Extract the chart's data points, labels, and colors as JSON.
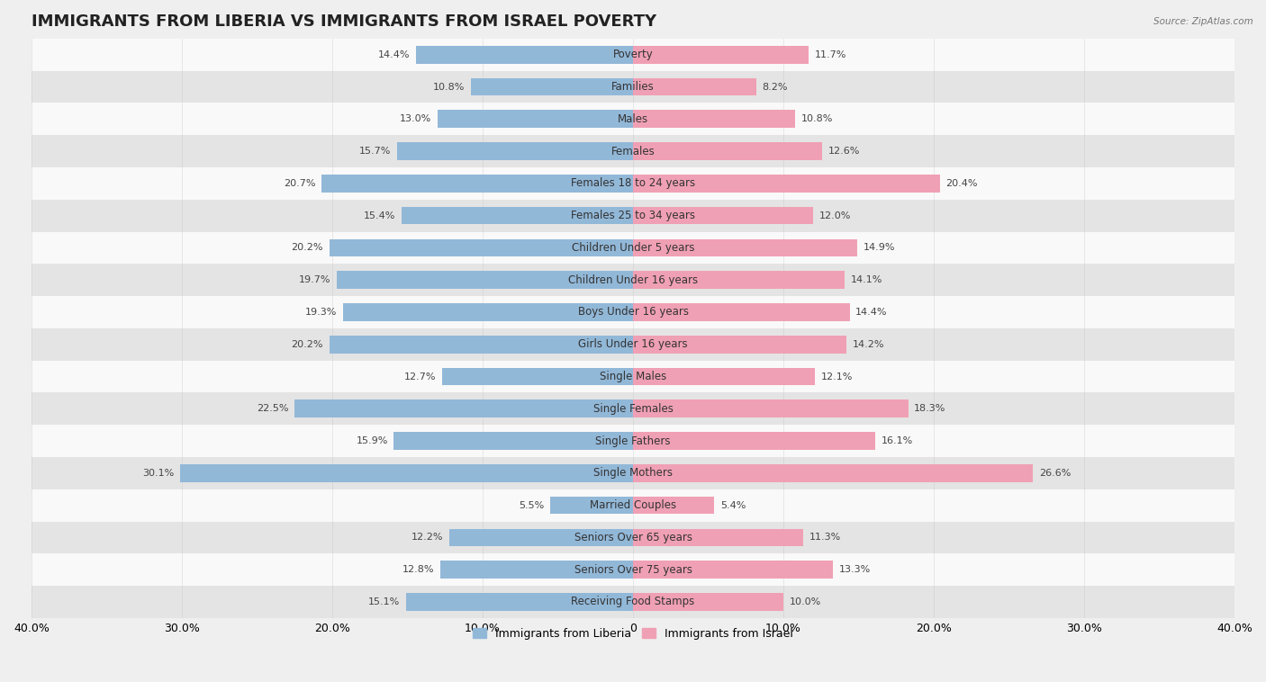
{
  "title": "IMMIGRANTS FROM LIBERIA VS IMMIGRANTS FROM ISRAEL POVERTY",
  "source": "Source: ZipAtlas.com",
  "categories": [
    "Poverty",
    "Families",
    "Males",
    "Females",
    "Females 18 to 24 years",
    "Females 25 to 34 years",
    "Children Under 5 years",
    "Children Under 16 years",
    "Boys Under 16 years",
    "Girls Under 16 years",
    "Single Males",
    "Single Females",
    "Single Fathers",
    "Single Mothers",
    "Married Couples",
    "Seniors Over 65 years",
    "Seniors Over 75 years",
    "Receiving Food Stamps"
  ],
  "liberia_values": [
    14.4,
    10.8,
    13.0,
    15.7,
    20.7,
    15.4,
    20.2,
    19.7,
    19.3,
    20.2,
    12.7,
    22.5,
    15.9,
    30.1,
    5.5,
    12.2,
    12.8,
    15.1
  ],
  "israel_values": [
    11.7,
    8.2,
    10.8,
    12.6,
    20.4,
    12.0,
    14.9,
    14.1,
    14.4,
    14.2,
    12.1,
    18.3,
    16.1,
    26.6,
    5.4,
    11.3,
    13.3,
    10.0
  ],
  "liberia_color": "#92b8d8",
  "israel_color": "#f0a0b4",
  "liberia_label": "Immigrants from Liberia",
  "israel_label": "Immigrants from Israel",
  "xlim": 40.0,
  "bg_color": "#efefef",
  "row_color_light": "#f9f9f9",
  "row_color_dark": "#e4e4e4",
  "title_fontsize": 13,
  "label_fontsize": 8.5,
  "value_fontsize": 8,
  "axis_label_fontsize": 9,
  "tick_positions": [
    -40,
    -30,
    -20,
    -10,
    0,
    10,
    20,
    30,
    40
  ],
  "tick_labels": [
    "40.0%",
    "30.0%",
    "20.0%",
    "10.0%",
    "0",
    "10.0%",
    "20.0%",
    "30.0%",
    "40.0%"
  ]
}
